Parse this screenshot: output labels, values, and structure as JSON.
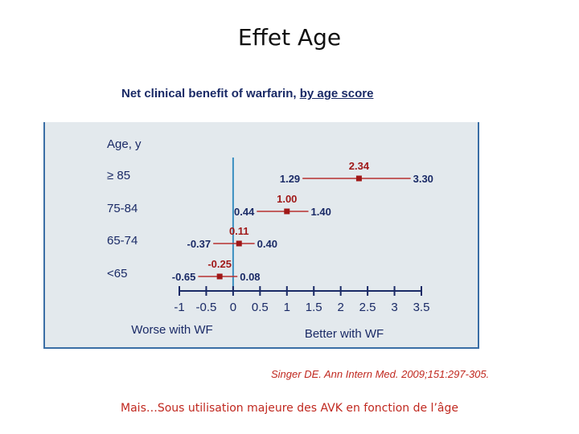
{
  "slide": {
    "title": "Effet Age",
    "caption": "Mais…Sous utilisation majeure des AVK  en fonction de l’âge"
  },
  "chart_data": {
    "type": "forest",
    "title_main": "Net clinical benefit of warfarin, ",
    "title_underlined": "by age score",
    "row_header": "Age, y",
    "xlabel_left": "Worse with WF",
    "xlabel_right": "Better with WF",
    "xlim": [
      -1,
      3.5
    ],
    "ticks": [
      -1,
      -0.5,
      0,
      0.5,
      1,
      1.5,
      2,
      2.5,
      3,
      3.5
    ],
    "tick_labels": [
      "-1",
      "-0.5",
      "0",
      "0.5",
      "1",
      "1.5",
      "2",
      "2.5",
      "3",
      "3.5"
    ],
    "rows": [
      {
        "label": "≥ 85",
        "estimate": 2.34,
        "lower": 1.29,
        "upper": 3.3,
        "est_label": "2.34",
        "lower_label": "1.29",
        "upper_label": "3.30"
      },
      {
        "label": "75-84",
        "estimate": 1.0,
        "lower": 0.44,
        "upper": 1.4,
        "est_label": "1.00",
        "lower_label": "0.44",
        "upper_label": "1.40"
      },
      {
        "label": "65-74",
        "estimate": 0.11,
        "lower": -0.37,
        "upper": 0.4,
        "est_label": "0.11",
        "lower_label": "-0.37",
        "upper_label": "0.40"
      },
      {
        "label": "<65",
        "estimate": -0.25,
        "lower": -0.65,
        "upper": 0.08,
        "est_label": "-0.25",
        "lower_label": "-0.65",
        "upper_label": "0.08"
      }
    ],
    "citation": "Singer DE. Ann Intern Med. 2009;151:297-305.",
    "colors": {
      "estimate": "#a01818",
      "ci_line": "#b83030",
      "axis": "#1a2a66",
      "zero_line": "#3a8fc0",
      "text": "#1a2a66"
    }
  }
}
